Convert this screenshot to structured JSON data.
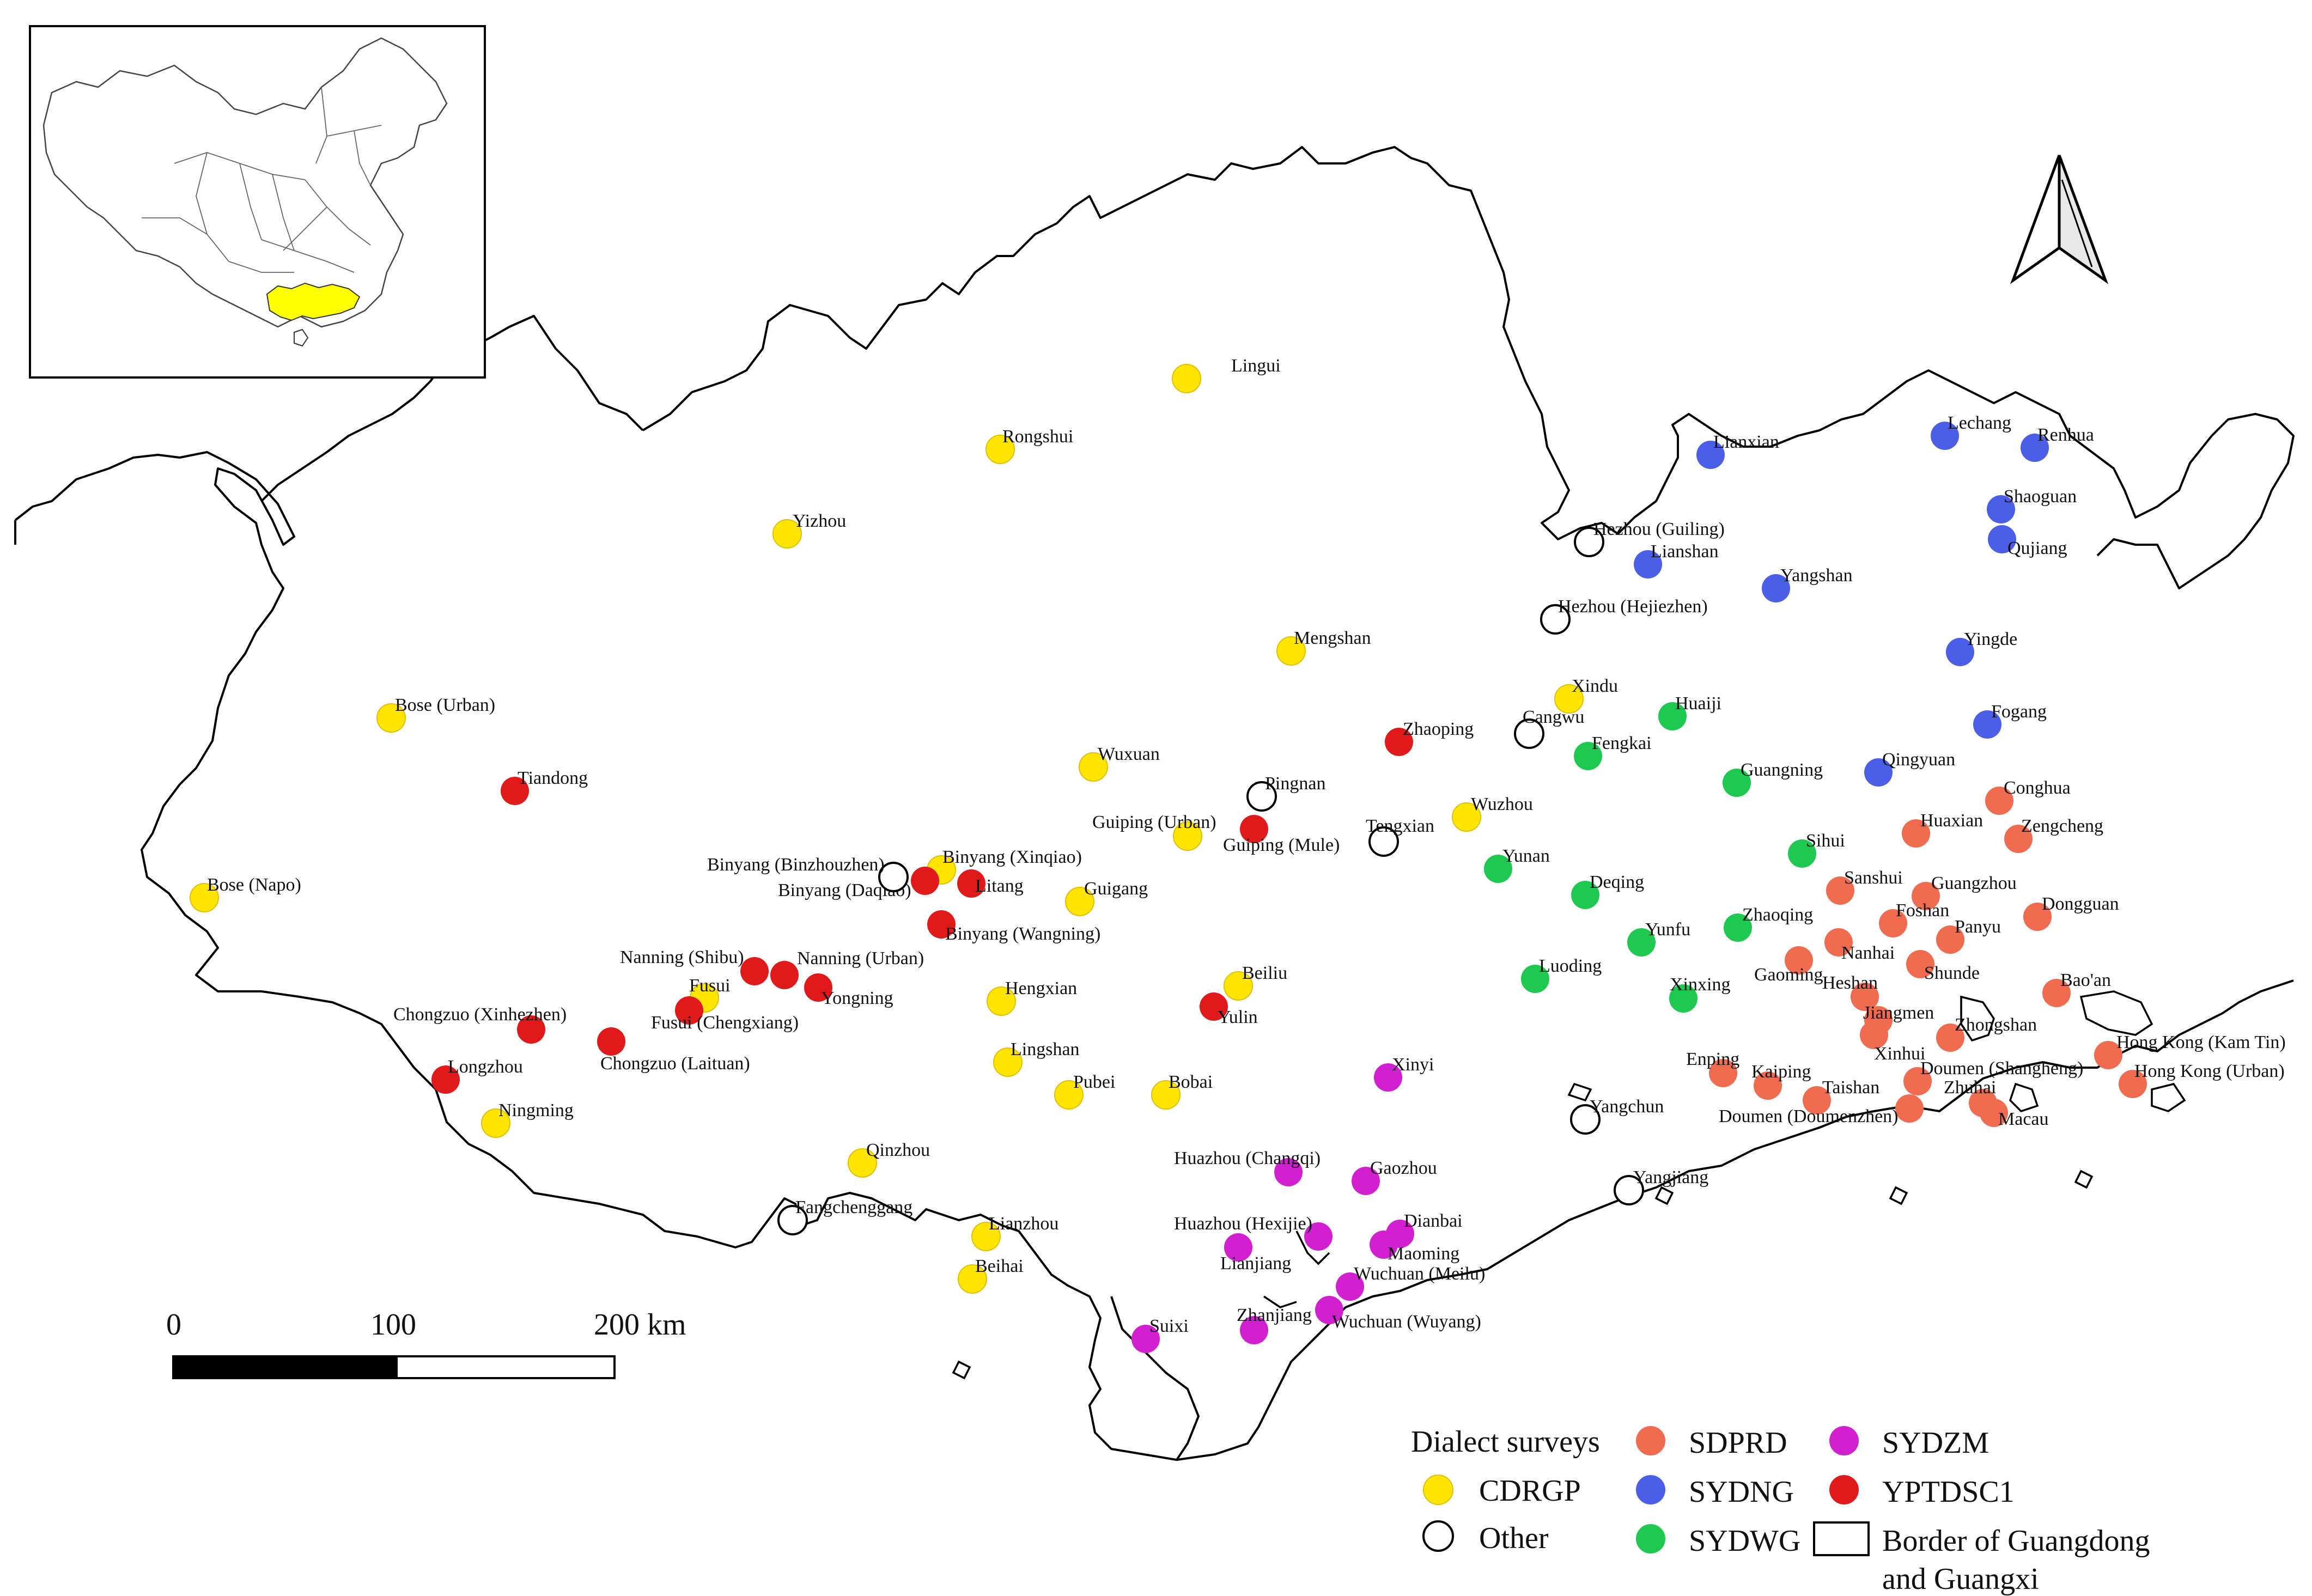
{
  "legend": {
    "title": "Dialect surveys",
    "items": [
      {
        "key": "CDRGP",
        "label": "CDRGP",
        "symbol": "filled",
        "color": "#ffe600"
      },
      {
        "key": "Other",
        "label": "Other",
        "symbol": "hollow",
        "color": "#ffffff"
      },
      {
        "key": "SDPRD",
        "label": "SDPRD",
        "symbol": "filled",
        "color": "#f06b4f"
      },
      {
        "key": "SYDNG",
        "label": "SYDNG",
        "symbol": "filled",
        "color": "#4a5ee8"
      },
      {
        "key": "SYDWG",
        "label": "SYDWG",
        "symbol": "filled",
        "color": "#1ec94f"
      },
      {
        "key": "SYDZM",
        "label": "SYDZM",
        "symbol": "filled",
        "color": "#d21fd0"
      },
      {
        "key": "YPTDSC1",
        "label": "YPTDSC1",
        "symbol": "filled",
        "color": "#e01a1a"
      },
      {
        "key": "Border",
        "label_line1": "Border of Guangdong",
        "label_line2": "and Guangxi",
        "symbol": "box"
      }
    ]
  },
  "scale_bar": {
    "labels": [
      "0",
      "100",
      "200 km"
    ]
  },
  "north_arrow": {
    "icon": "north-arrow-icon"
  },
  "inset": {
    "highlight_color": "#ffff00",
    "icon": "china-map-icon"
  },
  "sites": [
    {
      "name": "Lingui",
      "survey": "CDRGP"
    },
    {
      "name": "Rongshui",
      "survey": "CDRGP"
    },
    {
      "name": "Yizhou",
      "survey": "CDRGP"
    },
    {
      "name": "Mengshan",
      "survey": "CDRGP"
    },
    {
      "name": "Bose (Urban)",
      "survey": "CDRGP"
    },
    {
      "name": "Wuxuan",
      "survey": "CDRGP"
    },
    {
      "name": "Guiping (Urban)",
      "survey": "CDRGP"
    },
    {
      "name": "Xindu",
      "survey": "CDRGP"
    },
    {
      "name": "Wuzhou",
      "survey": "CDRGP"
    },
    {
      "name": "Bose (Napo)",
      "survey": "CDRGP"
    },
    {
      "name": "Guigang",
      "survey": "CDRGP"
    },
    {
      "name": "Fusui",
      "survey": "CDRGP"
    },
    {
      "name": "Beiliu",
      "survey": "CDRGP"
    },
    {
      "name": "Hengxian",
      "survey": "CDRGP"
    },
    {
      "name": "Lingshan",
      "survey": "CDRGP"
    },
    {
      "name": "Pubei",
      "survey": "CDRGP"
    },
    {
      "name": "Bobai",
      "survey": "CDRGP"
    },
    {
      "name": "Ningming",
      "survey": "CDRGP"
    },
    {
      "name": "Qinzhou",
      "survey": "CDRGP"
    },
    {
      "name": "Lianzhou",
      "survey": "CDRGP"
    },
    {
      "name": "Beihai",
      "survey": "CDRGP"
    },
    {
      "name": "Binyang (Xinqiao)",
      "survey": "CDRGP"
    },
    {
      "name": "Tiandong",
      "survey": "YPTDSC1"
    },
    {
      "name": "Zhaoping",
      "survey": "YPTDSC1"
    },
    {
      "name": "Guiping (Mule)",
      "survey": "YPTDSC1"
    },
    {
      "name": "Binyang (Daqiao)",
      "survey": "YPTDSC1"
    },
    {
      "name": "Litang",
      "survey": "YPTDSC1"
    },
    {
      "name": "Binyang (Wangning)",
      "survey": "YPTDSC1"
    },
    {
      "name": "Nanning (Shibu)",
      "survey": "YPTDSC1"
    },
    {
      "name": "Nanning (Urban)",
      "survey": "YPTDSC1"
    },
    {
      "name": "Yongning",
      "survey": "YPTDSC1"
    },
    {
      "name": "Fusui (Chengxiang)",
      "survey": "YPTDSC1"
    },
    {
      "name": "Chongzuo (Xinhezhen)",
      "survey": "YPTDSC1"
    },
    {
      "name": "Chongzuo (Laituan)",
      "survey": "YPTDSC1"
    },
    {
      "name": "Longzhou",
      "survey": "YPTDSC1"
    },
    {
      "name": "Yulin",
      "survey": "YPTDSC1"
    },
    {
      "name": "Pingnan",
      "survey": "Other"
    },
    {
      "name": "Tengxian",
      "survey": "Other"
    },
    {
      "name": "Cangwu",
      "survey": "Other"
    },
    {
      "name": "Hezhou (Guiling)",
      "survey": "Other"
    },
    {
      "name": "Hezhou (Hejiezhen)",
      "survey": "Other"
    },
    {
      "name": "Binyang (Binzhouzhen)",
      "survey": "Other"
    },
    {
      "name": "Fangchenggang",
      "survey": "Other"
    },
    {
      "name": "Yangchun",
      "survey": "Other"
    },
    {
      "name": "Yangjiang",
      "survey": "Other"
    },
    {
      "name": "Lianxian",
      "survey": "SYDNG"
    },
    {
      "name": "Lechang",
      "survey": "SYDNG"
    },
    {
      "name": "Renhua",
      "survey": "SYDNG"
    },
    {
      "name": "Shaoguan",
      "survey": "SYDNG"
    },
    {
      "name": "Qujiang",
      "survey": "SYDNG"
    },
    {
      "name": "Lianshan",
      "survey": "SYDNG"
    },
    {
      "name": "Yangshan",
      "survey": "SYDNG"
    },
    {
      "name": "Yingde",
      "survey": "SYDNG"
    },
    {
      "name": "Fogang",
      "survey": "SYDNG"
    },
    {
      "name": "Qingyuan",
      "survey": "SYDNG"
    },
    {
      "name": "Huaiji",
      "survey": "SYDWG"
    },
    {
      "name": "Fengkai",
      "survey": "SYDWG"
    },
    {
      "name": "Guangning",
      "survey": "SYDWG"
    },
    {
      "name": "Sihui",
      "survey": "SYDWG"
    },
    {
      "name": "Yunan",
      "survey": "SYDWG"
    },
    {
      "name": "Deqing",
      "survey": "SYDWG"
    },
    {
      "name": "Zhaoqing",
      "survey": "SYDWG"
    },
    {
      "name": "Yunfu",
      "survey": "SYDWG"
    },
    {
      "name": "Luoding",
      "survey": "SYDWG"
    },
    {
      "name": "Xinxing",
      "survey": "SYDWG"
    },
    {
      "name": "Conghua",
      "survey": "SDPRD"
    },
    {
      "name": "Huaxian",
      "survey": "SDPRD"
    },
    {
      "name": "Zengcheng",
      "survey": "SDPRD"
    },
    {
      "name": "Sanshui",
      "survey": "SDPRD"
    },
    {
      "name": "Guangzhou",
      "survey": "SDPRD"
    },
    {
      "name": "Foshan",
      "survey": "SDPRD"
    },
    {
      "name": "Panyu",
      "survey": "SDPRD"
    },
    {
      "name": "Dongguan",
      "survey": "SDPRD"
    },
    {
      "name": "Gaoming",
      "survey": "SDPRD"
    },
    {
      "name": "Nanhai",
      "survey": "SDPRD"
    },
    {
      "name": "Shunde",
      "survey": "SDPRD"
    },
    {
      "name": "Heshan",
      "survey": "SDPRD"
    },
    {
      "name": "Bao'an",
      "survey": "SDPRD"
    },
    {
      "name": "Jiangmen",
      "survey": "SDPRD"
    },
    {
      "name": "Zhongshan",
      "survey": "SDPRD"
    },
    {
      "name": "Xinhui",
      "survey": "SDPRD"
    },
    {
      "name": "Enping",
      "survey": "SDPRD"
    },
    {
      "name": "Kaiping",
      "survey": "SDPRD"
    },
    {
      "name": "Taishan",
      "survey": "SDPRD"
    },
    {
      "name": "Doumen (Shangheng)",
      "survey": "SDPRD"
    },
    {
      "name": "Doumen (Doumenzhen)",
      "survey": "SDPRD"
    },
    {
      "name": "Zhuhai",
      "survey": "SDPRD"
    },
    {
      "name": "Macau",
      "survey": "SDPRD"
    },
    {
      "name": "Hong Kong (Kam Tin)",
      "survey": "SDPRD"
    },
    {
      "name": "Hong Kong (Urban)",
      "survey": "SDPRD"
    },
    {
      "name": "Xinyi",
      "survey": "SYDZM"
    },
    {
      "name": "Huazhou (Changqi)",
      "survey": "SYDZM"
    },
    {
      "name": "Gaozhou",
      "survey": "SYDZM"
    },
    {
      "name": "Huazhou (Hexijie)",
      "survey": "SYDZM"
    },
    {
      "name": "Dianbai",
      "survey": "SYDZM"
    },
    {
      "name": "Maoming",
      "survey": "SYDZM"
    },
    {
      "name": "Lianjiang",
      "survey": "SYDZM"
    },
    {
      "name": "Wuchuan (Meilu)",
      "survey": "SYDZM"
    },
    {
      "name": "Wuchuan (Wuyang)",
      "survey": "SYDZM"
    },
    {
      "name": "Zhanjiang",
      "survey": "SYDZM"
    },
    {
      "name": "Suixi",
      "survey": "SYDZM"
    }
  ]
}
